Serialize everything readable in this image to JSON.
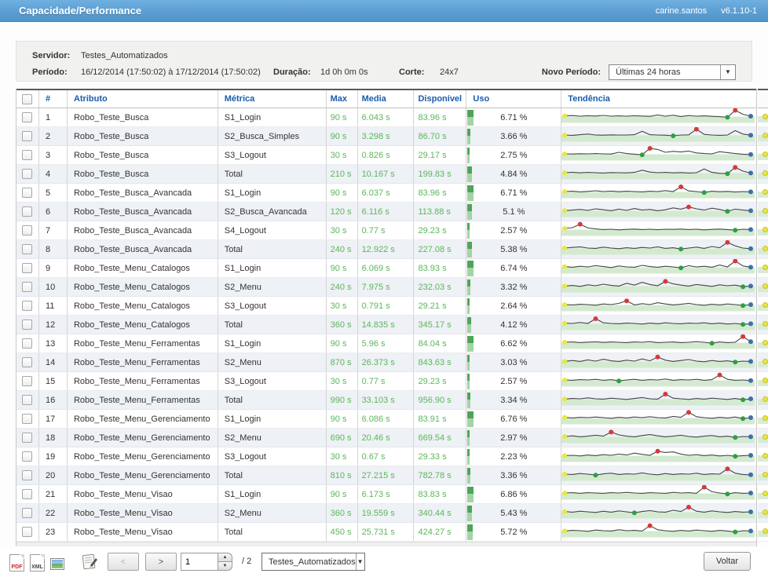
{
  "titlebar": {
    "title": "Capacidade/Performance",
    "user": "carine.santos",
    "version": "v6.1.10-1"
  },
  "info": {
    "servidor_label": "Servidor:",
    "servidor": "Testes_Automatizados",
    "periodo_label": "Período:",
    "periodo": "16/12/2014 (17:50:02) à 17/12/2014 (17:50:02)",
    "duracao_label": "Duração:",
    "duracao": "1d 0h 0m 0s",
    "corte_label": "Corte:",
    "corte": "24x7",
    "novo_periodo_label": "Novo Período:",
    "novo_periodo_value": "Últimas 24 horas"
  },
  "table": {
    "columns": [
      "#",
      "Atributo",
      "Métrica",
      "Max",
      "Media",
      "Disponível",
      "Uso",
      "Tendência"
    ],
    "rows": [
      {
        "num": "1",
        "atributo": "Robo_Teste_Busca",
        "metrica": "S1_Login",
        "max": "90 s",
        "media": "6.043 s",
        "disponivel": "83.96 s",
        "uso": "6.71 %",
        "uso_pct": 6.71,
        "trend": [
          52,
          54,
          50,
          53,
          51,
          55,
          50,
          52,
          50,
          53,
          51,
          49,
          58,
          50,
          56,
          48,
          54,
          50,
          52,
          49,
          47,
          43,
          90,
          62,
          50
        ]
      },
      {
        "num": "2",
        "atributo": "Robo_Teste_Busca",
        "metrica": "S2_Busca_Simples",
        "max": "90 s",
        "media": "3.298 s",
        "disponivel": "86.70 s",
        "uso": "3.66 %",
        "uso_pct": 3.66,
        "trend": [
          50,
          48,
          52,
          56,
          50,
          49,
          51,
          50,
          50,
          52,
          74,
          52,
          50,
          49,
          45,
          50,
          51,
          88,
          54,
          50,
          48,
          50,
          78,
          56,
          49
        ]
      },
      {
        "num": "3",
        "atributo": "Robo_Teste_Busca",
        "metrica": "S3_Logout",
        "max": "30 s",
        "media": "0.826 s",
        "disponivel": "29.17 s",
        "uso": "2.75 %",
        "uso_pct": 2.75,
        "trend": [
          50,
          49,
          51,
          50,
          52,
          50,
          49,
          60,
          52,
          48,
          44,
          85,
          78,
          60,
          66,
          62,
          68,
          56,
          52,
          50,
          64,
          58,
          52,
          48,
          46
        ]
      },
      {
        "num": "4",
        "atributo": "Robo_Teste_Busca",
        "metrica": "Total",
        "max": "210 s",
        "media": "10.167 s",
        "disponivel": "199.83 s",
        "uso": "4.84 %",
        "uso_pct": 4.84,
        "trend": [
          50,
          53,
          49,
          52,
          50,
          48,
          51,
          50,
          49,
          52,
          66,
          54,
          50,
          52,
          49,
          51,
          48,
          50,
          74,
          52,
          46,
          44,
          84,
          60,
          48
        ]
      },
      {
        "num": "5",
        "atributo": "Robo_Teste_Busca_Avancada",
        "metrica": "S1_Login",
        "max": "90 s",
        "media": "6.037 s",
        "disponivel": "83.96 s",
        "uso": "6.71 %",
        "uso_pct": 6.71,
        "trend": [
          50,
          52,
          48,
          51,
          55,
          50,
          53,
          49,
          52,
          50,
          48,
          52,
          50,
          56,
          50,
          80,
          54,
          50,
          44,
          52,
          49,
          51,
          47,
          50,
          48
        ]
      },
      {
        "num": "6",
        "atributo": "Robo_Teste_Busca_Avancada",
        "metrica": "S2_Busca_Avancada",
        "max": "120 s",
        "media": "6.116 s",
        "disponivel": "113.88 s",
        "uso": "5.1 %",
        "uso_pct": 5.1,
        "trend": [
          48,
          52,
          56,
          50,
          60,
          54,
          48,
          58,
          50,
          62,
          52,
          56,
          48,
          54,
          66,
          58,
          72,
          60,
          52,
          64,
          56,
          44,
          58,
          52,
          48
        ]
      },
      {
        "num": "7",
        "atributo": "Robo_Teste_Busca_Avancada",
        "metrica": "S4_Logout",
        "max": "30 s",
        "media": "0.77 s",
        "disponivel": "29.23 s",
        "uso": "2.57 %",
        "uso_pct": 2.57,
        "trend": [
          55,
          60,
          82,
          58,
          52,
          48,
          50,
          46,
          49,
          51,
          48,
          50,
          47,
          50,
          49,
          51,
          48,
          50,
          46,
          49,
          51,
          48,
          44,
          50,
          48
        ]
      },
      {
        "num": "8",
        "atributo": "Robo_Teste_Busca_Avancada",
        "metrica": "Total",
        "max": "240 s",
        "media": "12.922 s",
        "disponivel": "227.08 s",
        "uso": "5.38 %",
        "uso_pct": 5.38,
        "trend": [
          50,
          54,
          58,
          50,
          48,
          56,
          50,
          46,
          52,
          48,
          54,
          50,
          58,
          48,
          52,
          44,
          50,
          56,
          48,
          60,
          52,
          86,
          64,
          50,
          46
        ]
      },
      {
        "num": "9",
        "atributo": "Robo_Teste_Menu_Catalogos",
        "metrica": "S1_Login",
        "max": "90 s",
        "media": "6.069 s",
        "disponivel": "83.93 s",
        "uso": "6.74 %",
        "uso_pct": 6.74,
        "trend": [
          52,
          48,
          54,
          50,
          58,
          52,
          46,
          56,
          50,
          48,
          60,
          52,
          48,
          54,
          50,
          44,
          58,
          50,
          54,
          48,
          62,
          50,
          88,
          56,
          48
        ]
      },
      {
        "num": "10",
        "atributo": "Robo_Teste_Menu_Catalogos",
        "metrica": "S2_Menu",
        "max": "240 s",
        "media": "7.975 s",
        "disponivel": "232.03 s",
        "uso": "3.32 %",
        "uso_pct": 3.32,
        "trend": [
          48,
          52,
          46,
          56,
          50,
          60,
          52,
          48,
          66,
          54,
          72,
          58,
          50,
          78,
          62,
          54,
          48,
          58,
          52,
          46,
          56,
          50,
          54,
          44,
          48
        ]
      },
      {
        "num": "11",
        "atributo": "Robo_Teste_Menu_Catalogos",
        "metrica": "S3_Logout",
        "max": "30 s",
        "media": "0.791 s",
        "disponivel": "29.21 s",
        "uso": "2.64 %",
        "uso_pct": 2.64,
        "trend": [
          50,
          48,
          52,
          50,
          46,
          54,
          50,
          58,
          74,
          48,
          56,
          50,
          62,
          54,
          48,
          52,
          58,
          50,
          46,
          52,
          48,
          54,
          50,
          44,
          50
        ]
      },
      {
        "num": "12",
        "atributo": "Robo_Teste_Menu_Catalogos",
        "metrica": "Total",
        "max": "360 s",
        "media": "14.835 s",
        "disponivel": "345.17 s",
        "uso": "4.12 %",
        "uso_pct": 4.12,
        "trend": [
          52,
          50,
          56,
          50,
          80,
          54,
          50,
          48,
          52,
          50,
          46,
          52,
          48,
          54,
          50,
          48,
          52,
          50,
          54,
          48,
          52,
          46,
          50,
          44,
          48
        ]
      },
      {
        "num": "13",
        "atributo": "Robo_Teste_Menu_Ferramentas",
        "metrica": "S1_Login",
        "max": "90 s",
        "media": "5.96 s",
        "disponivel": "84.04 s",
        "uso": "6.62 %",
        "uso_pct": 6.62,
        "trend": [
          50,
          52,
          48,
          51,
          53,
          49,
          52,
          50,
          48,
          52,
          50,
          54,
          48,
          50,
          52,
          48,
          50,
          54,
          50,
          44,
          52,
          48,
          50,
          86,
          54
        ]
      },
      {
        "num": "14",
        "atributo": "Robo_Teste_Menu_Ferramentas",
        "metrica": "S2_Menu",
        "max": "870 s",
        "media": "26.373 s",
        "disponivel": "843.63 s",
        "uso": "3.03 %",
        "uso_pct": 3.03,
        "trend": [
          48,
          54,
          48,
          58,
          50,
          62,
          52,
          48,
          56,
          50,
          64,
          52,
          76,
          56,
          48,
          54,
          60,
          50,
          46,
          54,
          48,
          52,
          44,
          50,
          48
        ]
      },
      {
        "num": "15",
        "atributo": "Robo_Teste_Menu_Ferramentas",
        "metrica": "S3_Logout",
        "max": "30 s",
        "media": "0.77 s",
        "disponivel": "29.23 s",
        "uso": "2.57 %",
        "uso_pct": 2.57,
        "trend": [
          50,
          48,
          52,
          50,
          54,
          48,
          52,
          44,
          50,
          54,
          48,
          52,
          50,
          56,
          48,
          52,
          50,
          54,
          48,
          52,
          82,
          54,
          48,
          50,
          46
        ]
      },
      {
        "num": "16",
        "atributo": "Robo_Teste_Menu_Ferramentas",
        "metrica": "Total",
        "max": "990 s",
        "media": "33.103 s",
        "disponivel": "956.90 s",
        "uso": "3.34 %",
        "uso_pct": 3.34,
        "trend": [
          48,
          52,
          50,
          56,
          50,
          48,
          54,
          50,
          46,
          52,
          58,
          50,
          48,
          80,
          54,
          50,
          46,
          52,
          48,
          54,
          50,
          46,
          52,
          44,
          50
        ]
      },
      {
        "num": "17",
        "atributo": "Robo_Teste_Menu_Gerenciamento",
        "metrica": "S1_Login",
        "max": "90 s",
        "media": "6.086 s",
        "disponivel": "83.91 s",
        "uso": "6.76 %",
        "uso_pct": 6.76,
        "trend": [
          52,
          48,
          52,
          50,
          54,
          50,
          46,
          52,
          48,
          54,
          50,
          56,
          50,
          48,
          58,
          52,
          84,
          56,
          50,
          46,
          52,
          48,
          54,
          44,
          50
        ]
      },
      {
        "num": "18",
        "atributo": "Robo_Teste_Menu_Gerenciamento",
        "metrica": "S2_Menu",
        "max": "690 s",
        "media": "20.46 s",
        "disponivel": "669.54 s",
        "uso": "2.97 %",
        "uso_pct": 2.97,
        "trend": [
          50,
          54,
          48,
          52,
          58,
          52,
          78,
          60,
          52,
          48,
          56,
          62,
          54,
          48,
          52,
          58,
          50,
          46,
          52,
          56,
          48,
          52,
          44,
          50,
          48
        ]
      },
      {
        "num": "19",
        "atributo": "Robo_Teste_Menu_Gerenciamento",
        "metrica": "S3_Logout",
        "max": "30 s",
        "media": "0.67 s",
        "disponivel": "29.33 s",
        "uso": "2.23 %",
        "uso_pct": 2.23,
        "trend": [
          48,
          50,
          46,
          52,
          48,
          54,
          50,
          58,
          52,
          64,
          56,
          50,
          76,
          68,
          72,
          58,
          50,
          54,
          48,
          52,
          46,
          50,
          44,
          48,
          50
        ]
      },
      {
        "num": "20",
        "atributo": "Robo_Teste_Menu_Gerenciamento",
        "metrica": "Total",
        "max": "810 s",
        "media": "27.215 s",
        "disponivel": "782.78 s",
        "uso": "3.36 %",
        "uso_pct": 3.36,
        "trend": [
          50,
          48,
          54,
          50,
          44,
          52,
          56,
          48,
          52,
          50,
          58,
          50,
          46,
          54,
          48,
          52,
          50,
          56,
          48,
          52,
          50,
          84,
          56,
          48,
          46
        ]
      },
      {
        "num": "21",
        "atributo": "Robo_Teste_Menu_Visao",
        "metrica": "S1_Login",
        "max": "90 s",
        "media": "6.173 s",
        "disponivel": "83.83 s",
        "uso": "6.86 %",
        "uso_pct": 6.86,
        "trend": [
          50,
          52,
          48,
          52,
          50,
          48,
          52,
          50,
          54,
          50,
          48,
          52,
          50,
          48,
          54,
          50,
          52,
          48,
          88,
          58,
          50,
          44,
          52,
          48,
          50
        ]
      },
      {
        "num": "22",
        "atributo": "Robo_Teste_Menu_Visao",
        "metrica": "S2_Menu",
        "max": "360 s",
        "media": "19.559 s",
        "disponivel": "340.44 s",
        "uso": "5.43 %",
        "uso_pct": 5.43,
        "trend": [
          52,
          48,
          54,
          50,
          46,
          54,
          48,
          56,
          50,
          44,
          52,
          58,
          50,
          48,
          60,
          52,
          80,
          54,
          48,
          56,
          50,
          46,
          52,
          48,
          50
        ]
      },
      {
        "num": "23",
        "atributo": "Robo_Teste_Menu_Visao",
        "metrica": "Total",
        "max": "450 s",
        "media": "25.731 s",
        "disponivel": "424.27 s",
        "uso": "5.72 %",
        "uso_pct": 5.72,
        "trend": [
          48,
          52,
          50,
          46,
          54,
          50,
          48,
          56,
          50,
          52,
          48,
          82,
          56,
          50,
          46,
          52,
          48,
          54,
          50,
          46,
          52,
          48,
          42,
          50,
          48
        ]
      }
    ]
  },
  "toolbar": {
    "pdf_label": "PDF",
    "xml_label": "XML",
    "prev_label": "<",
    "next_label": ">",
    "page_value": "1",
    "page_total": "/ 2",
    "server_select_value": "Testes_Automatizados",
    "voltar_label": "Voltar"
  },
  "colors": {
    "topbar_blue": "#5b9dd2",
    "header_text_blue": "#1b5cad",
    "value_green": "#5bb75b",
    "uso_bar_dark": "#4ea557",
    "uso_bar_light": "#a3d4a5",
    "trend_band": "#d4ead0",
    "trend_line": "#454545",
    "dot_start_yellow": "#ece73a",
    "dot_min_green": "#2f9e44",
    "dot_max_red": "#d43a3a",
    "dot_end_blue": "#3d6fa8",
    "row_alt": "#eef1f5"
  }
}
